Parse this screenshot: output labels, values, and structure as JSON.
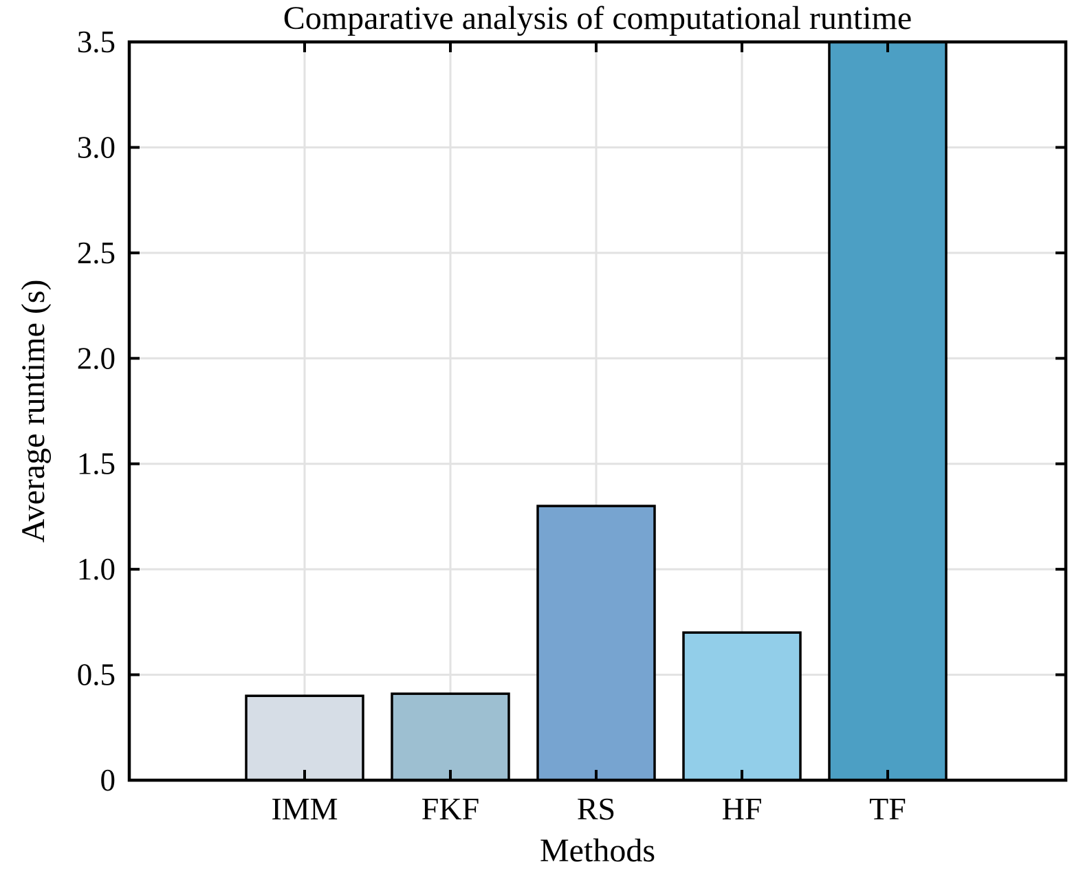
{
  "chart_data": {
    "type": "bar",
    "title": "Comparative analysis of computational runtime",
    "xlabel": "Methods",
    "ylabel": "Average runtime (s)",
    "categories": [
      "IMM",
      "FKF",
      "RS",
      "HF",
      "TF"
    ],
    "values": [
      0.4,
      0.41,
      1.3,
      0.7,
      3.5
    ],
    "ylim": [
      0,
      3.5
    ],
    "yticks": [
      0,
      0.5,
      1.0,
      1.5,
      2.0,
      2.5,
      3.0,
      3.5
    ],
    "ytick_labels": [
      "0",
      "0.5",
      "1.0",
      "1.5",
      "2.0",
      "2.5",
      "3.0",
      "3.5"
    ],
    "grid": "light gray horizontal lines at y ticks and vertical lines at category centers",
    "legend": "none",
    "tick_direction": "in",
    "ticks_on_all_sides": true,
    "bar_colors": [
      "#d6dde6",
      "#9dbfd1",
      "#77a4d0",
      "#92cee9",
      "#4c9fc4"
    ],
    "bar_edge_color": "#000000",
    "grid_color": "#e2e2e2",
    "axis_color": "#000000",
    "background_color": "#ffffff",
    "annotations": [
      "TF bar extends past the top axis limit and is clipped at y = 3.5"
    ]
  }
}
